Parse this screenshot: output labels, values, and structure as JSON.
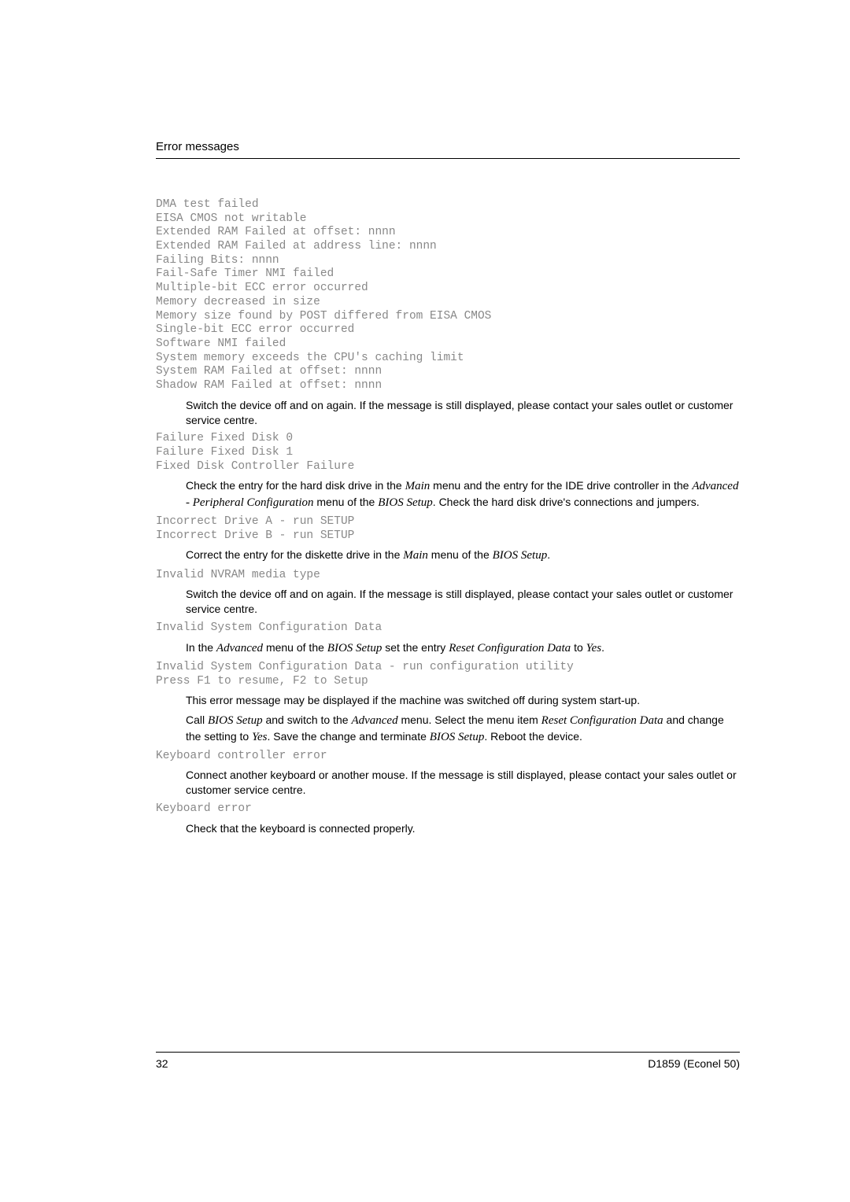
{
  "header": {
    "title": "Error messages"
  },
  "block1_lines": [
    "DMA test failed",
    "EISA CMOS not writable",
    "Extended RAM Failed at offset: nnnn",
    "Extended RAM Failed at address line: nnnn",
    "Failing Bits: nnnn",
    "Fail-Safe Timer NMI failed",
    "Multiple-bit ECC error occurred",
    "Memory decreased in size",
    "Memory size found by POST differed from EISA CMOS",
    "Single-bit ECC error occurred",
    "Software NMI failed",
    "System memory exceeds the CPU's caching limit",
    "System RAM Failed at offset: nnnn",
    "Shadow RAM Failed at offset: nnnn"
  ],
  "para1": "Switch the device off and on again. If the message is still displayed, please contact your sales outlet or customer service centre.",
  "block2_lines": [
    "Failure Fixed Disk 0",
    "Failure Fixed Disk 1",
    "Fixed Disk Controller Failure"
  ],
  "para2_parts": {
    "t1": "Check the entry for the hard disk drive in the ",
    "i1": "Main",
    "t2": " menu and the entry for the IDE drive controller in the ",
    "i2": "Advanced - Peripheral Configuration",
    "t3": " menu of the ",
    "i3": "BIOS Setup",
    "t4": ". Check the hard disk drive's connections and jumpers."
  },
  "block3_lines": [
    "Incorrect Drive A - run SETUP",
    "Incorrect Drive B - run SETUP"
  ],
  "para3_parts": {
    "t1": "Correct the entry for the diskette drive in the ",
    "i1": "Main",
    "t2": " menu of the ",
    "i2": "BIOS Setup",
    "t3": "."
  },
  "block4_lines": [
    "Invalid NVRAM media type"
  ],
  "para4": "Switch the device off and on again. If the message is still displayed, please contact your sales outlet or customer service centre.",
  "block5_lines": [
    "Invalid System Configuration Data"
  ],
  "para5_parts": {
    "t1": "In the ",
    "i1": "Advanced",
    "t2": " menu of the ",
    "i2": "BIOS Setup",
    "t3": " set the entry ",
    "i3": "Reset Configuration Data",
    "t4": " to ",
    "i4": "Yes",
    "t5": "."
  },
  "block6_lines": [
    "Invalid System Configuration Data - run configuration utility",
    "Press F1 to resume, F2 to Setup"
  ],
  "para6a": "This error message may be displayed if the machine was switched off during system start-up.",
  "para6b_parts": {
    "t1": "Call ",
    "i1": "BIOS Setup",
    "t2": " and switch to the ",
    "i2": "Advanced",
    "t3": " menu. Select the menu item ",
    "i3": "Reset Configuration Data",
    "t4": " and change the setting to ",
    "i4": "Yes",
    "t5": ". Save the change and terminate ",
    "i5": "BIOS Setup",
    "t6": ". Reboot the device."
  },
  "block7_lines": [
    "Keyboard controller error"
  ],
  "para7": "Connect another keyboard or another mouse. If the message is still displayed, please contact your sales outlet or customer service centre.",
  "block8_lines": [
    "Keyboard error"
  ],
  "para8": "Check that the keyboard is connected properly.",
  "footer": {
    "page_number": "32",
    "doc_id": "D1859 (Econel 50)"
  },
  "styles": {
    "mono_color": "#888888",
    "body_color": "#000000",
    "background": "#ffffff",
    "mono_family": "Courier New",
    "body_family": "Arial",
    "italic_family": "Times New Roman"
  }
}
